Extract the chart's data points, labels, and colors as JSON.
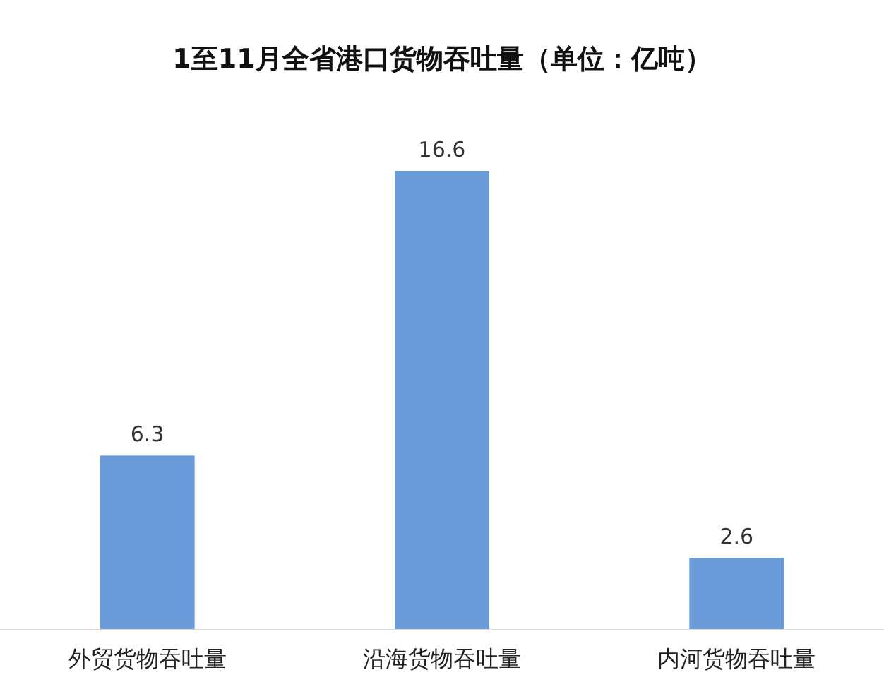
{
  "chart_data": {
    "type": "bar",
    "title": "1至11月全省港口货物吞吐量（单位：亿吨）",
    "categories": [
      "外贸货物吞吐量",
      "沿海货物吞吐量",
      "内河货物吞吐量"
    ],
    "values": [
      6.3,
      16.6,
      2.6
    ],
    "color": "#6a9bd8",
    "data_labels": true
  }
}
